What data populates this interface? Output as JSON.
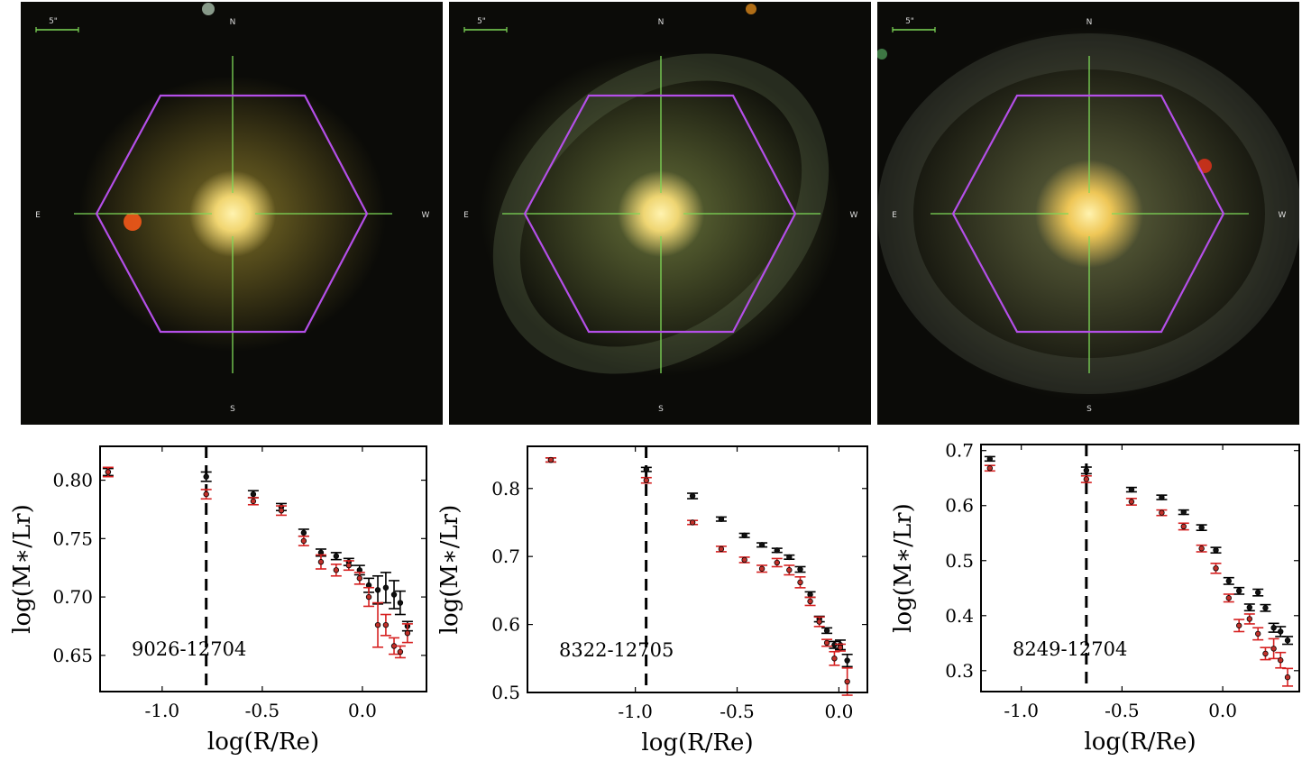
{
  "images": [
    {
      "id": "9026-12704",
      "scale_label": "5\"",
      "compass": {
        "n": "N",
        "s": "S",
        "e": "E",
        "w": "W"
      },
      "colors": {
        "hexagon": "#b44fe8",
        "crosshair": "#7ed957",
        "core": "#ffe27a",
        "halo": "#8a7a2a"
      },
      "features": "compact"
    },
    {
      "id": "8322-12705",
      "scale_label": "5\"",
      "compass": {
        "n": "N",
        "s": "S",
        "e": "E",
        "w": "W"
      },
      "colors": {
        "hexagon": "#b44fe8",
        "crosshair": "#7ed957",
        "core": "#ffe27a",
        "halo": "#6f7a3e"
      },
      "features": "spiral"
    },
    {
      "id": "8249-12704",
      "scale_label": "5\"",
      "compass": {
        "n": "N",
        "s": "S",
        "e": "E",
        "w": "W"
      },
      "colors": {
        "hexagon": "#b44fe8",
        "crosshair": "#7ed957",
        "core": "#ffd25a",
        "halo": "#6d7246"
      },
      "features": "extended"
    }
  ],
  "chart_data": [
    {
      "type": "scatter",
      "annotation": "9026-12704",
      "xlabel": "log(R/Re)",
      "ylabel": "log(M∗/Lr)",
      "xlim": [
        -1.31,
        0.32
      ],
      "ylim": [
        0.619,
        0.829
      ],
      "xticks": [
        -1.0,
        -0.5,
        0.0
      ],
      "xtick_labels": [
        "-1.0",
        "-0.5",
        "0.0"
      ],
      "yticks": [
        0.65,
        0.7,
        0.75,
        0.8
      ],
      "ytick_labels": [
        "0.65",
        "0.70",
        "0.75",
        "0.80"
      ],
      "vline": -0.78,
      "grid": false,
      "series": [
        {
          "color": "#000000",
          "x": [
            -1.27,
            -0.78,
            -0.545,
            -0.405,
            -0.293,
            -0.207,
            -0.131,
            -0.068,
            -0.014,
            0.032,
            0.077,
            0.117,
            0.158,
            0.189,
            0.225
          ],
          "y": [
            0.807,
            0.803,
            0.788,
            0.777,
            0.755,
            0.738,
            0.735,
            0.73,
            0.723,
            0.71,
            0.706,
            0.708,
            0.702,
            0.695,
            0.675
          ],
          "err": [
            0.003,
            0.004,
            0.003,
            0.003,
            0.003,
            0.003,
            0.003,
            0.003,
            0.004,
            0.006,
            0.012,
            0.013,
            0.012,
            0.01,
            0.004
          ]
        },
        {
          "color": "#d62020",
          "x": [
            -1.27,
            -0.78,
            -0.545,
            -0.405,
            -0.293,
            -0.207,
            -0.131,
            -0.068,
            -0.014,
            0.032,
            0.077,
            0.117,
            0.158,
            0.189,
            0.225
          ],
          "y": [
            0.807,
            0.788,
            0.782,
            0.774,
            0.748,
            0.73,
            0.723,
            0.727,
            0.716,
            0.7,
            0.676,
            0.676,
            0.658,
            0.653,
            0.669
          ],
          "err": [
            0.004,
            0.004,
            0.003,
            0.004,
            0.004,
            0.006,
            0.005,
            0.004,
            0.005,
            0.008,
            0.019,
            0.009,
            0.007,
            0.005,
            0.008
          ]
        }
      ]
    },
    {
      "type": "scatter",
      "annotation": "8322-12705",
      "xlabel": "log(R/Re)",
      "ylabel": "log(M∗/Lr)",
      "xlim": [
        -1.53,
        0.14
      ],
      "ylim": [
        0.5,
        0.862
      ],
      "xticks": [
        -1.0,
        -0.5,
        0.0
      ],
      "xtick_labels": [
        "-1.0",
        "-0.5",
        "0.0"
      ],
      "yticks": [
        0.5,
        0.6,
        0.7,
        0.8
      ],
      "ytick_labels": [
        "0.5",
        "0.6",
        "0.7",
        "0.8"
      ],
      "vline": -0.947,
      "grid": false,
      "series": [
        {
          "color": "#000000",
          "x": [
            -1.415,
            -0.946,
            -0.719,
            -0.578,
            -0.464,
            -0.378,
            -0.304,
            -0.244,
            -0.19,
            -0.141,
            -0.096,
            -0.059,
            -0.022,
            0.007,
            0.041
          ],
          "y": [
            0.842,
            0.828,
            0.789,
            0.755,
            0.731,
            0.717,
            0.709,
            0.699,
            0.681,
            0.644,
            0.608,
            0.591,
            0.57,
            0.57,
            0.547
          ],
          "err": [
            0.003,
            0.003,
            0.004,
            0.003,
            0.003,
            0.003,
            0.003,
            0.003,
            0.004,
            0.004,
            0.004,
            0.004,
            0.005,
            0.007,
            0.009
          ]
        },
        {
          "color": "#d62020",
          "x": [
            -1.415,
            -0.946,
            -0.719,
            -0.578,
            -0.464,
            -0.378,
            -0.304,
            -0.244,
            -0.19,
            -0.141,
            -0.096,
            -0.059,
            -0.022,
            0.007,
            0.041
          ],
          "y": [
            0.842,
            0.812,
            0.75,
            0.711,
            0.695,
            0.682,
            0.691,
            0.68,
            0.662,
            0.634,
            0.604,
            0.573,
            0.55,
            0.566,
            0.516
          ],
          "err": [
            0.003,
            0.004,
            0.003,
            0.004,
            0.004,
            0.005,
            0.006,
            0.007,
            0.008,
            0.006,
            0.007,
            0.005,
            0.01,
            0.005,
            0.02
          ]
        }
      ]
    },
    {
      "type": "scatter",
      "annotation": "8249-12704",
      "xlabel": "log(R/Re)",
      "ylabel": "log(M∗/Lr)",
      "xlim": [
        -1.2,
        0.38
      ],
      "ylim": [
        0.262,
        0.711
      ],
      "xticks": [
        -1.0,
        -0.5,
        0.0
      ],
      "xtick_labels": [
        "-1.0",
        "-0.5",
        "0.0"
      ],
      "yticks": [
        0.3,
        0.4,
        0.5,
        0.6,
        0.7
      ],
      "ytick_labels": [
        "0.3",
        "0.4",
        "0.5",
        "0.6",
        "0.7"
      ],
      "vline": -0.677,
      "grid": false,
      "series": [
        {
          "color": "#000000",
          "x": [
            -1.156,
            -0.677,
            -0.453,
            -0.303,
            -0.194,
            -0.105,
            -0.034,
            0.03,
            0.081,
            0.133,
            0.175,
            0.212,
            0.253,
            0.287,
            0.322
          ],
          "y": [
            0.685,
            0.664,
            0.629,
            0.615,
            0.588,
            0.56,
            0.519,
            0.463,
            0.445,
            0.415,
            0.442,
            0.414,
            0.378,
            0.371,
            0.355
          ],
          "err": [
            0.004,
            0.006,
            0.004,
            0.004,
            0.004,
            0.005,
            0.005,
            0.006,
            0.006,
            0.006,
            0.006,
            0.006,
            0.008,
            0.009,
            0.007
          ]
        },
        {
          "color": "#d62020",
          "x": [
            -1.156,
            -0.677,
            -0.453,
            -0.303,
            -0.194,
            -0.105,
            -0.034,
            0.03,
            0.081,
            0.133,
            0.175,
            0.212,
            0.253,
            0.287,
            0.322
          ],
          "y": [
            0.668,
            0.648,
            0.607,
            0.587,
            0.562,
            0.522,
            0.486,
            0.432,
            0.382,
            0.394,
            0.367,
            0.331,
            0.34,
            0.319,
            0.288
          ],
          "err": [
            0.005,
            0.006,
            0.006,
            0.005,
            0.006,
            0.006,
            0.009,
            0.007,
            0.011,
            0.009,
            0.011,
            0.011,
            0.018,
            0.014,
            0.016
          ]
        }
      ]
    }
  ]
}
